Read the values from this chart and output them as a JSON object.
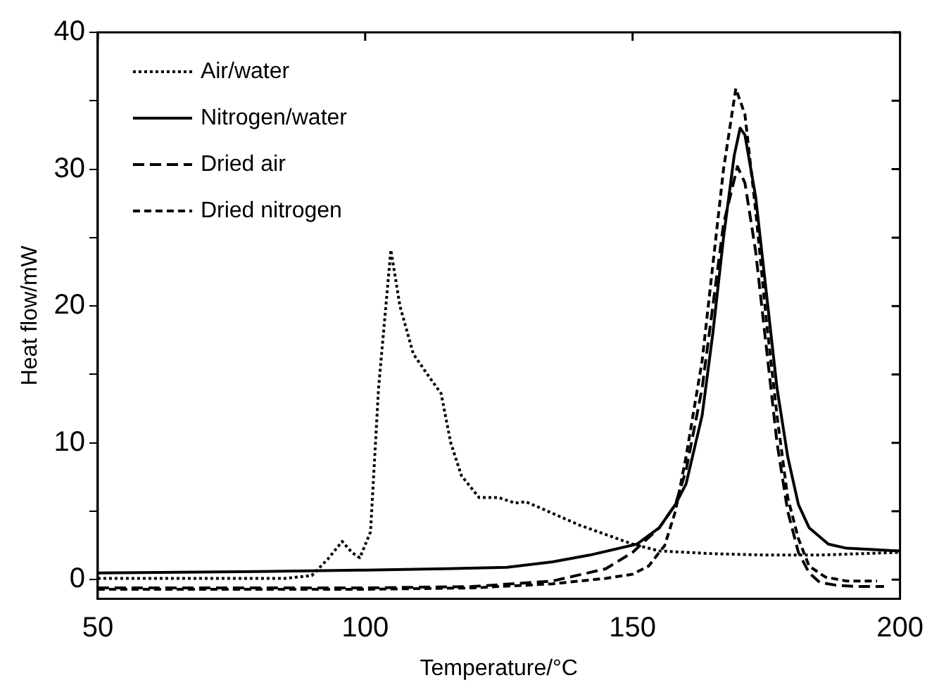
{
  "chart_data": {
    "type": "line",
    "xlabel": "Temperature/°C",
    "ylabel": "Heat flow/mW",
    "xlim": [
      50,
      200
    ],
    "ylim": [
      -1.4,
      40
    ],
    "xticks": [
      50,
      100,
      150,
      200
    ],
    "yticks": [
      0,
      {
        "value": 5,
        "label": null
      },
      10,
      {
        "value": 15,
        "label": null
      },
      20,
      {
        "value": 25,
        "label": null
      },
      30,
      {
        "value": 35,
        "label": null
      },
      40
    ],
    "grid": false,
    "legend": "top left",
    "marker": "none",
    "series": [
      {
        "name": "Air/water",
        "color": "#000000",
        "line_style": "dotted",
        "x": [
          50,
          70,
          85,
          90,
          93,
          95.7,
          97.5,
          99,
          101,
          102.5,
          104.8,
          106.5,
          109,
          112,
          114.2,
          116,
          118,
          121.3,
          125,
          128,
          130,
          133,
          140,
          150,
          155,
          165,
          175,
          185,
          200
        ],
        "values": [
          0.1,
          0.1,
          0.1,
          0.3,
          1.5,
          2.8,
          2.0,
          1.6,
          3.5,
          14,
          24.1,
          20,
          16.5,
          14.8,
          13.6,
          10,
          7.6,
          6.0,
          6.0,
          5.6,
          5.7,
          5.2,
          4.0,
          2.6,
          2.1,
          1.9,
          1.8,
          1.8,
          2.0
        ]
      },
      {
        "name": "Nitrogen/water",
        "color": "#000000",
        "line_style": "solid",
        "x": [
          50,
          80,
          100,
          115,
          126.5,
          135,
          142,
          150.8,
          155,
          158,
          160,
          163,
          165,
          167,
          169,
          170.1,
          171,
          173,
          175,
          177,
          179,
          181,
          183,
          186.6,
          190,
          195,
          200
        ],
        "values": [
          0.5,
          0.6,
          0.7,
          0.8,
          0.9,
          1.3,
          1.8,
          2.6,
          3.8,
          5.5,
          7,
          12,
          18,
          25,
          31,
          33,
          32.5,
          28,
          21,
          14,
          9,
          5.5,
          3.8,
          2.6,
          2.3,
          2.2,
          2.1
        ]
      },
      {
        "name": "Dried air",
        "color": "#000000",
        "line_style": "dashed",
        "x": [
          50,
          80,
          100,
          120,
          135,
          145,
          150,
          155,
          158,
          160,
          163,
          165,
          167,
          169.6,
          171,
          173,
          175,
          177,
          179,
          181,
          183,
          185,
          188,
          192,
          197
        ],
        "values": [
          -0.6,
          -0.6,
          -0.6,
          -0.5,
          -0.1,
          0.8,
          2.0,
          3.8,
          5.5,
          8,
          14,
          20,
          26,
          30.2,
          29,
          24,
          17,
          10,
          5,
          2,
          0.5,
          -0.2,
          -0.4,
          -0.5,
          -0.5
        ]
      },
      {
        "name": "Dried nitrogen",
        "color": "#000000",
        "line_style": "dashed",
        "x": [
          50,
          80,
          100,
          120,
          135,
          145,
          150,
          153,
          156,
          158,
          160,
          163,
          165,
          167,
          169.3,
          171,
          173,
          175,
          177,
          179,
          181,
          183,
          186,
          190,
          195.7
        ],
        "values": [
          -0.7,
          -0.7,
          -0.7,
          -0.6,
          -0.3,
          0.1,
          0.4,
          1.0,
          2.5,
          5,
          9,
          16,
          23,
          30,
          35.9,
          34,
          27,
          19,
          12,
          6,
          3,
          1,
          0.2,
          -0.1,
          -0.1
        ]
      }
    ]
  }
}
